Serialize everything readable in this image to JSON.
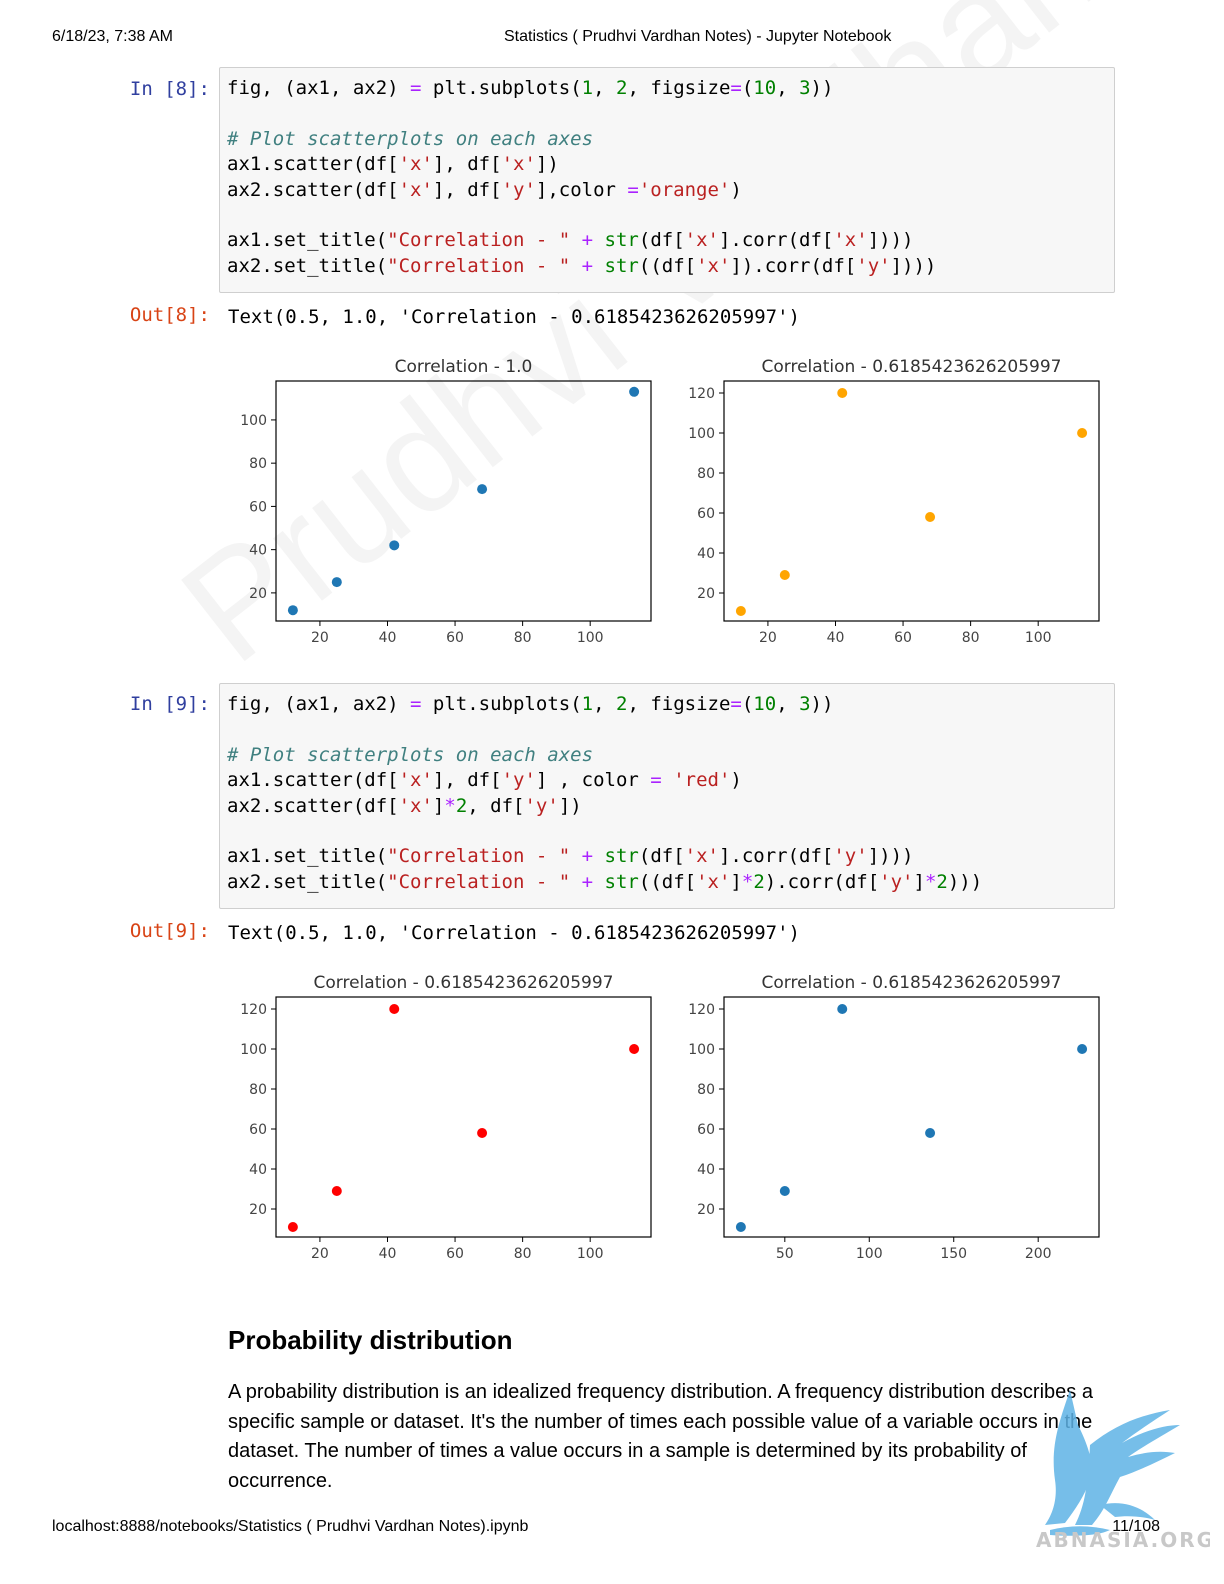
{
  "print_header": {
    "datetime": "6/18/23, 7:38 AM",
    "doc_title": "Statistics ( Prudhvi Vardhan Notes) - Jupyter Notebook"
  },
  "print_footer": {
    "url": "localhost:8888/notebooks/Statistics ( Prudhvi Vardhan Notes).ipynb",
    "page": "11/108"
  },
  "cells": [
    {
      "in_prompt": "In [8]:",
      "out_prompt": "Out[8]:",
      "output_text": "Text(0.5, 1.0, 'Correlation - 0.6185423626205997')"
    },
    {
      "in_prompt": "In [9]:",
      "out_prompt": "Out[9]:",
      "output_text": "Text(0.5, 1.0, 'Correlation - 0.6185423626205997')"
    }
  ],
  "markdown": {
    "heading": "Probability distribution",
    "paragraph": "A probability distribution is an idealized frequency distribution. A frequency distribution describes a specific sample or dataset. It's the number of times each possible value of a variable occurs in the dataset. The number of times a value occurs in a sample is determined by its probability of occurrence."
  },
  "watermark": "Prudhvi Vardhan",
  "logo_text": "ABNASIA.ORG",
  "colors": {
    "blue": "#1f77b4",
    "orange": "#ffa500",
    "red": "#ff0000",
    "prompt_in": "#303F9F",
    "prompt_out": "#D84315"
  },
  "chart_data": [
    {
      "type": "scatter",
      "title": "Correlation - 1.0",
      "color": "#1f77b4",
      "x": [
        12,
        25,
        42,
        68,
        113
      ],
      "y": [
        12,
        25,
        42,
        68,
        113
      ],
      "xlim": [
        7,
        118
      ],
      "ylim": [
        7,
        118
      ],
      "xticks": [
        20,
        40,
        60,
        80,
        100
      ],
      "yticks": [
        20,
        40,
        60,
        80,
        100
      ]
    },
    {
      "type": "scatter",
      "title": "Correlation - 0.6185423626205997",
      "color": "#ffa500",
      "x": [
        12,
        25,
        42,
        68,
        113
      ],
      "y": [
        11,
        29,
        120,
        58,
        100
      ],
      "xlim": [
        7,
        118
      ],
      "ylim": [
        6,
        126
      ],
      "xticks": [
        20,
        40,
        60,
        80,
        100
      ],
      "yticks": [
        20,
        40,
        60,
        80,
        100,
        120
      ]
    },
    {
      "type": "scatter",
      "title": "Correlation - 0.6185423626205997",
      "color": "#ff0000",
      "x": [
        12,
        25,
        42,
        68,
        113
      ],
      "y": [
        11,
        29,
        120,
        58,
        100
      ],
      "xlim": [
        7,
        118
      ],
      "ylim": [
        6,
        126
      ],
      "xticks": [
        20,
        40,
        60,
        80,
        100
      ],
      "yticks": [
        20,
        40,
        60,
        80,
        100,
        120
      ]
    },
    {
      "type": "scatter",
      "title": "Correlation - 0.6185423626205997",
      "color": "#1f77b4",
      "x": [
        24,
        50,
        84,
        136,
        226
      ],
      "y": [
        11,
        29,
        120,
        58,
        100
      ],
      "xlim": [
        14,
        236
      ],
      "ylim": [
        6,
        126
      ],
      "xticks": [
        50,
        100,
        150,
        200
      ],
      "yticks": [
        20,
        40,
        60,
        80,
        100,
        120
      ]
    }
  ]
}
